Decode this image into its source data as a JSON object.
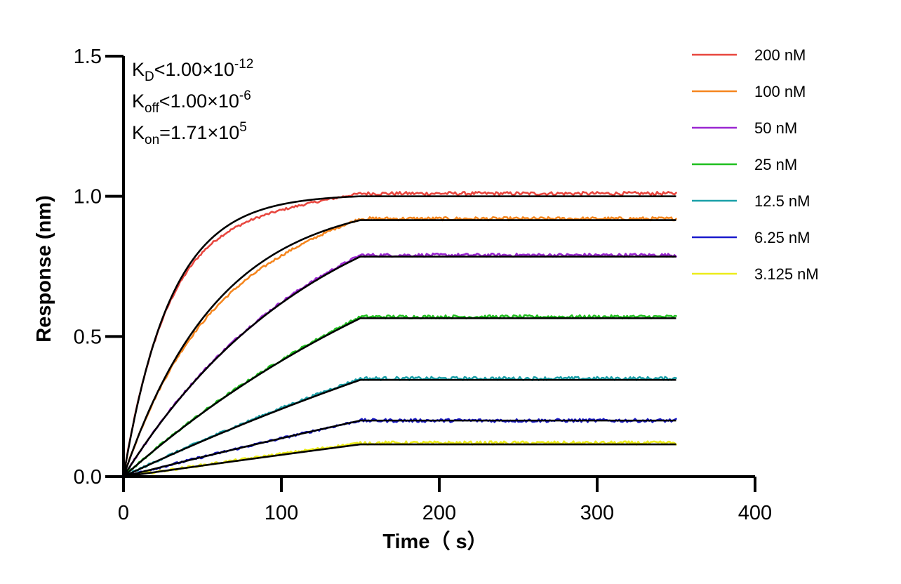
{
  "chart_data": {
    "type": "line",
    "title": "",
    "xlabel": "Time（ s）",
    "ylabel": "Response (nm)",
    "xlim": [
      0,
      400
    ],
    "ylim": [
      0,
      1.5
    ],
    "xticks": [
      0,
      100,
      200,
      300,
      400
    ],
    "xtick_labels": [
      "0",
      "100",
      "200",
      "300",
      "400"
    ],
    "yticks": [
      0,
      0.5,
      1.0,
      1.5
    ],
    "ytick_labels": [
      "0.0",
      "0.5",
      "1.0",
      "1.5"
    ],
    "grid": false,
    "legend_position": "top-right",
    "association_end_s": 150,
    "dissociation_end_s": 350,
    "annotations": [
      {
        "base": "K",
        "sub": "D",
        "rest": "<1.00×10",
        "sup": "-12"
      },
      {
        "base": "K",
        "sub": "off",
        "rest": "<1.00×10",
        "sup": "-6"
      },
      {
        "base": "K",
        "sub": "on",
        "rest": "=1.71×10",
        "sup": "5"
      }
    ],
    "fit_line_color": "#000000",
    "series": [
      {
        "name": "200 nM",
        "color": "#e8473f",
        "plateau": 1.01,
        "fit_plateau": 1.0,
        "time_constant_s": 30
      },
      {
        "name": "100 nM",
        "color": "#f5861f",
        "plateau": 0.92,
        "fit_plateau": 0.915,
        "time_constant_s": 60
      },
      {
        "name": "50 nM",
        "color": "#9b27d1",
        "plateau": 0.79,
        "fit_plateau": 0.785,
        "time_constant_s": 125
      },
      {
        "name": "25 nM",
        "color": "#1fbf1f",
        "plateau": 0.57,
        "fit_plateau": 0.565,
        "time_constant_s": 250
      },
      {
        "name": "12.5 nM",
        "color": "#1aa0a8",
        "plateau": 0.35,
        "fit_plateau": 0.345,
        "time_constant_s": 500
      },
      {
        "name": "6.25 nM",
        "color": "#1a1acc",
        "plateau": 0.2,
        "fit_plateau": 0.2,
        "time_constant_s": 1000
      },
      {
        "name": "3.125 nM",
        "color": "#ecec1a",
        "plateau": 0.12,
        "fit_plateau": 0.115,
        "time_constant_s": 2000
      }
    ]
  }
}
